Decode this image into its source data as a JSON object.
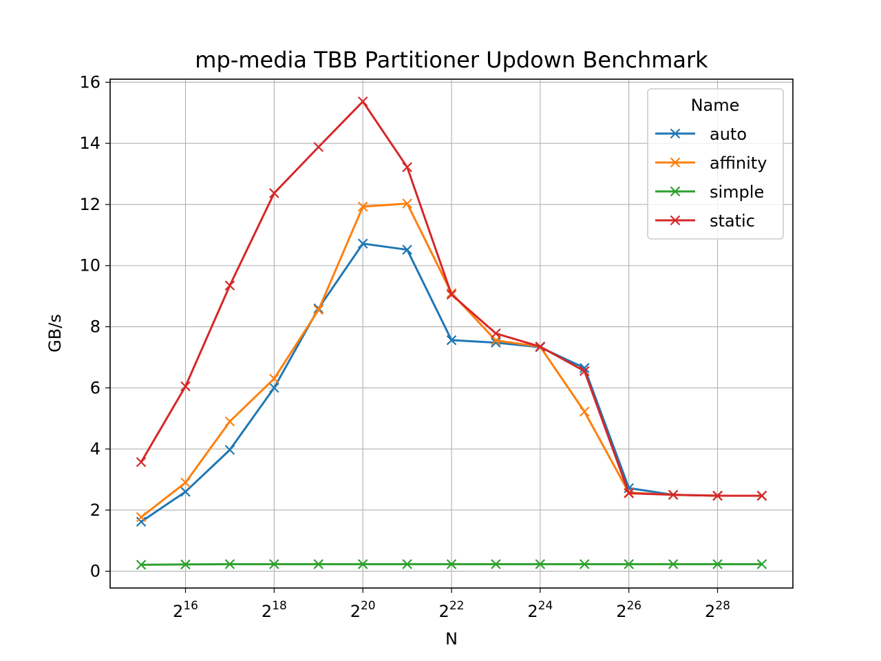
{
  "chart_data": {
    "type": "line",
    "title": "mp-media TBB Partitioner Updown Benchmark",
    "xlabel": "N",
    "ylabel": "GB/s",
    "x_scale": "log2",
    "x": [
      32768,
      65536,
      131072,
      262144,
      524288,
      1048576,
      2097152,
      4194304,
      8388608,
      16777216,
      33554432,
      67108864,
      134217728,
      268435456,
      536870912
    ],
    "x_tick_labels": [
      {
        "base": "2",
        "exp": "16",
        "value": 65536
      },
      {
        "base": "2",
        "exp": "18",
        "value": 262144
      },
      {
        "base": "2",
        "exp": "20",
        "value": 1048576
      },
      {
        "base": "2",
        "exp": "22",
        "value": 4194304
      },
      {
        "base": "2",
        "exp": "24",
        "value": 16777216
      },
      {
        "base": "2",
        "exp": "26",
        "value": 67108864
      },
      {
        "base": "2",
        "exp": "28",
        "value": 268435456
      }
    ],
    "y_ticks": [
      "0",
      "2",
      "4",
      "6",
      "8",
      "10",
      "12",
      "14",
      "16"
    ],
    "ylim": [
      -0.55,
      16.1
    ],
    "grid": true,
    "legend": {
      "title": "Name",
      "placement": "top-right"
    },
    "series": [
      {
        "name": "auto",
        "color": "#1f77b4",
        "marker": "x",
        "values": [
          1.62,
          2.6,
          3.97,
          6.0,
          8.6,
          10.72,
          10.52,
          7.56,
          7.48,
          7.33,
          6.65,
          2.72,
          2.5,
          2.47,
          2.47
        ]
      },
      {
        "name": "affinity",
        "color": "#ff7f0e",
        "marker": "x",
        "values": [
          1.77,
          2.9,
          4.9,
          6.3,
          8.55,
          11.93,
          12.03,
          9.1,
          7.55,
          7.35,
          5.22,
          2.57,
          2.5,
          2.47,
          2.47
        ]
      },
      {
        "name": "simple",
        "color": "#2ca02c",
        "marker": "x",
        "values": [
          0.21,
          0.22,
          0.23,
          0.23,
          0.23,
          0.23,
          0.23,
          0.23,
          0.23,
          0.23,
          0.23,
          0.23,
          0.23,
          0.23,
          0.23
        ]
      },
      {
        "name": "static",
        "color": "#d62728",
        "marker": "x",
        "values": [
          3.57,
          6.05,
          9.35,
          12.37,
          13.88,
          15.37,
          13.22,
          9.05,
          7.78,
          7.35,
          6.55,
          2.55,
          2.5,
          2.47,
          2.47
        ]
      }
    ]
  }
}
